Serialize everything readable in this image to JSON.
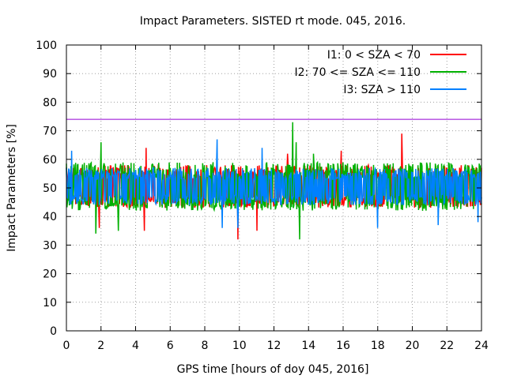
{
  "chart_data": {
    "type": "line",
    "title": "Impact Parameters. SISTED rt mode. 045, 2016.",
    "xlabel": "GPS time [hours of doy 045, 2016]",
    "ylabel": "Impact Parameters [%]",
    "xlim": [
      0,
      24
    ],
    "ylim": [
      0,
      100
    ],
    "xticks": [
      0,
      2,
      4,
      6,
      8,
      10,
      12,
      14,
      16,
      18,
      20,
      22,
      24
    ],
    "yticks": [
      0,
      10,
      20,
      30,
      40,
      50,
      60,
      70,
      80,
      90,
      100
    ],
    "grid": true,
    "legend_position": "top-right",
    "reference_line": {
      "y": 74,
      "color": "#9400d3"
    },
    "series": [
      {
        "name": "I1: 0 < SZA < 70",
        "color": "#ff0000",
        "sampling": {
          "x_start": 0,
          "x_end": 24,
          "count": 720,
          "seed": 17
        },
        "center": 50,
        "typical_high": 58,
        "typical_low": 43,
        "spikes": [
          {
            "x": 1.9,
            "y": 36
          },
          {
            "x": 4.5,
            "y": 35
          },
          {
            "x": 4.6,
            "y": 64
          },
          {
            "x": 9.9,
            "y": 32
          },
          {
            "x": 11.0,
            "y": 35
          },
          {
            "x": 12.8,
            "y": 62
          },
          {
            "x": 19.4,
            "y": 69
          },
          {
            "x": 15.9,
            "y": 63
          }
        ]
      },
      {
        "name": "I2: 70 <= SZA <= 110",
        "color": "#00b000",
        "sampling": {
          "x_start": 0,
          "x_end": 24,
          "count": 720,
          "seed": 29
        },
        "center": 50,
        "typical_high": 59,
        "typical_low": 42,
        "spikes": [
          {
            "x": 1.7,
            "y": 34
          },
          {
            "x": 2.0,
            "y": 66
          },
          {
            "x": 3.0,
            "y": 35
          },
          {
            "x": 13.1,
            "y": 73
          },
          {
            "x": 13.3,
            "y": 66
          },
          {
            "x": 13.5,
            "y": 32
          },
          {
            "x": 14.3,
            "y": 62
          },
          {
            "x": 20.6,
            "y": 42
          }
        ]
      },
      {
        "name": "I3: SZA > 110",
        "color": "#0080ff",
        "sampling": {
          "x_start": 0,
          "x_end": 24,
          "count": 720,
          "seed": 41
        },
        "center": 50,
        "typical_high": 57,
        "typical_low": 44,
        "spikes": [
          {
            "x": 0.3,
            "y": 63
          },
          {
            "x": 8.7,
            "y": 67
          },
          {
            "x": 9.0,
            "y": 36
          },
          {
            "x": 9.9,
            "y": 36
          },
          {
            "x": 11.3,
            "y": 64
          },
          {
            "x": 18.0,
            "y": 36
          },
          {
            "x": 21.5,
            "y": 37
          },
          {
            "x": 23.8,
            "y": 38
          }
        ]
      }
    ]
  }
}
